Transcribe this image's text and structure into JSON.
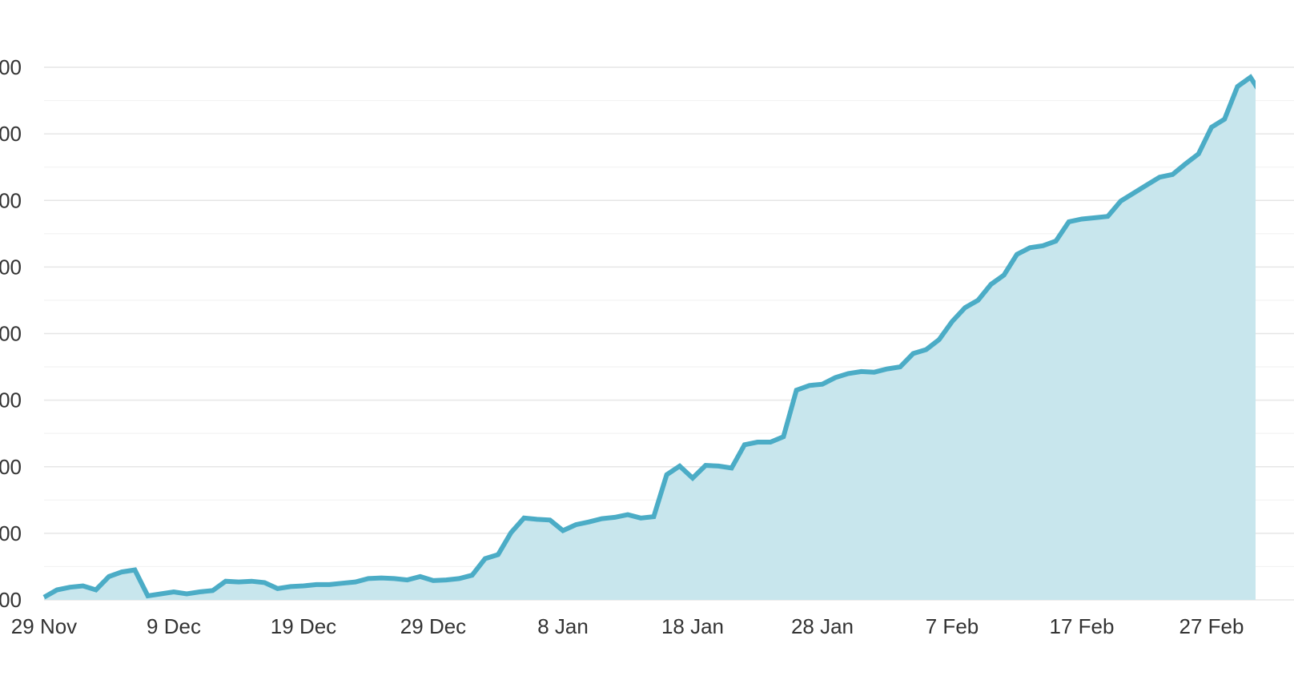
{
  "chart_data": {
    "type": "area",
    "title": "",
    "xlabel": "",
    "ylabel": "",
    "grid": true,
    "legend": "none",
    "colors": {
      "line": "#4bacc6",
      "fill": "#c8e6ed",
      "grid": "#e6e6e6",
      "text": "#333333"
    },
    "x_tick_labels": [
      "29 Nov",
      "9 Dec",
      "19 Dec",
      "29 Dec",
      "8 Jan",
      "18 Jan",
      "28 Jan",
      "7 Feb",
      "17 Feb",
      "27 Feb"
    ],
    "y_tick_labels": [
      "00",
      "00",
      "00",
      "00",
      "00",
      "00",
      "00",
      "00",
      "00"
    ],
    "y_range_note": "y tick labels are cropped at left edge; only trailing '00' is visible",
    "ylim": [
      0,
      8
    ],
    "x_start": "29 Nov",
    "x_end": "2 Mar",
    "series": [
      {
        "values": [
          0.04,
          0.15,
          0.19,
          0.21,
          0.15,
          0.35,
          0.42,
          0.45,
          0.06,
          0.09,
          0.12,
          0.09,
          0.12,
          0.14,
          0.28,
          0.27,
          0.28,
          0.26,
          0.17,
          0.2,
          0.21,
          0.23,
          0.23,
          0.25,
          0.27,
          0.32,
          0.33,
          0.32,
          0.3,
          0.35,
          0.29,
          0.3,
          0.32,
          0.37,
          0.62,
          0.68,
          1.01,
          1.23,
          1.21,
          1.2,
          1.04,
          1.13,
          1.17,
          1.22,
          1.24,
          1.28,
          1.23,
          1.25,
          1.88,
          2.01,
          1.83,
          2.02,
          2.01,
          1.98,
          2.33,
          2.37,
          2.37,
          2.45,
          3.15,
          3.22,
          3.24,
          3.34,
          3.4,
          3.43,
          3.42,
          3.47,
          3.5,
          3.7,
          3.76,
          3.91,
          4.18,
          4.39,
          4.5,
          4.74,
          4.88,
          5.19,
          5.29,
          5.32,
          5.39,
          5.68,
          5.72,
          5.74,
          5.76,
          5.99,
          6.11,
          6.23,
          6.35,
          6.39,
          6.55,
          6.7,
          7.1,
          7.22,
          7.71,
          7.85,
          7.55
        ]
      }
    ]
  }
}
